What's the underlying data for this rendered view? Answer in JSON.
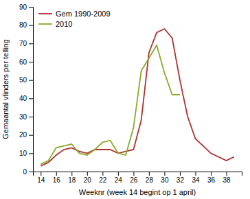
{
  "chart_data": {
    "type": "line",
    "x_label": "Weeknr (week 14 begint op 1 april)",
    "y_label": "Gemaantal vlinders per telling",
    "series": [
      {
        "name": "Gem 1990-2009",
        "color": "#b03030",
        "x": [
          14,
          15,
          16,
          17,
          18,
          19,
          20,
          21,
          22,
          23,
          24,
          25,
          26,
          27,
          28,
          29,
          30,
          31,
          32,
          33,
          34,
          36,
          38,
          39
        ],
        "values": [
          3,
          5,
          9,
          12,
          13,
          11,
          10,
          12,
          12,
          12,
          10,
          11,
          12,
          28,
          65,
          76,
          78,
          73,
          50,
          30,
          18,
          10,
          6,
          8
        ]
      },
      {
        "name": "2010",
        "color": "#8aaa28",
        "x": [
          14,
          15,
          16,
          17,
          18,
          19,
          20,
          21,
          22,
          23,
          24,
          25,
          26,
          27,
          28,
          29,
          30,
          31,
          32
        ],
        "values": [
          4,
          6,
          13,
          14,
          15,
          10,
          9,
          12,
          16,
          17,
          10,
          9,
          24,
          55,
          62,
          69,
          54,
          42,
          42
        ]
      }
    ],
    "xlim": [
      13,
      40
    ],
    "ylim": [
      0,
      90
    ],
    "xticks": [
      14,
      16,
      18,
      20,
      22,
      24,
      26,
      28,
      30,
      32,
      34,
      36,
      38
    ],
    "yticks": [
      0,
      10,
      20,
      30,
      40,
      50,
      60,
      70,
      80,
      90
    ],
    "grid": false,
    "legend": "upper-left"
  }
}
